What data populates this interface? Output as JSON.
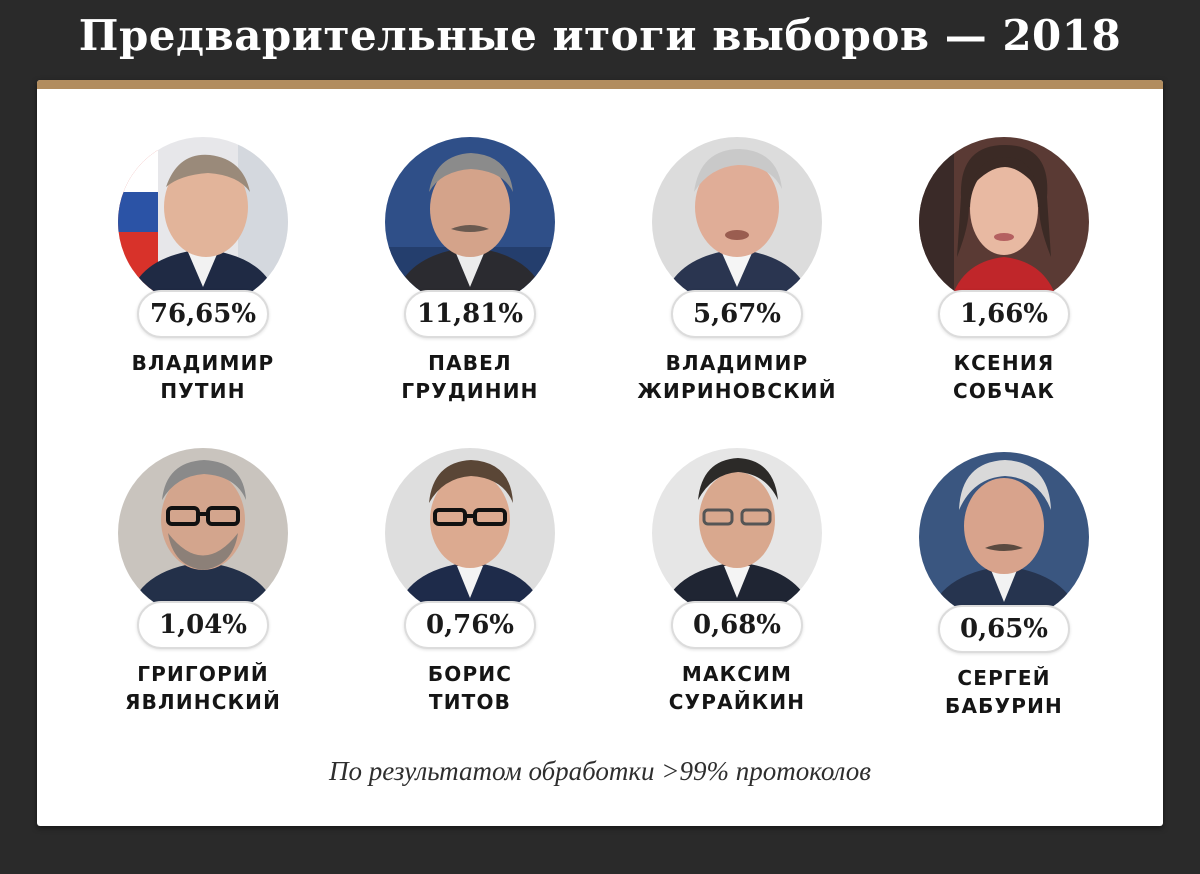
{
  "header": {
    "title": "Предварительные итоги выборов — 2018"
  },
  "colors": {
    "background": "#2a2a2a",
    "card": "#ffffff",
    "accent_bar": "#b28d5f"
  },
  "candidates": [
    {
      "first_name": "ВЛАДИМИР",
      "last_name": "ПУТИН",
      "percent": "76,65%",
      "share": 76.65,
      "portrait": "portrait-putin"
    },
    {
      "first_name": "ПАВЕЛ",
      "last_name": "ГРУДИНИН",
      "percent": "11,81%",
      "share": 11.81,
      "portrait": "portrait-grudinin"
    },
    {
      "first_name": "ВЛАДИМИР",
      "last_name": "ЖИРИНОВСКИЙ",
      "percent": "5,67%",
      "share": 5.67,
      "portrait": "portrait-zhirinovsky"
    },
    {
      "first_name": "КСЕНИЯ",
      "last_name": "СОБЧАК",
      "percent": "1,66%",
      "share": 1.66,
      "portrait": "portrait-sobchak"
    },
    {
      "first_name": "ГРИГОРИЙ",
      "last_name": "ЯВЛИНСКИЙ",
      "percent": "1,04%",
      "share": 1.04,
      "portrait": "portrait-yavlinsky"
    },
    {
      "first_name": "БОРИС",
      "last_name": "ТИТОВ",
      "percent": "0,76%",
      "share": 0.76,
      "portrait": "portrait-titov"
    },
    {
      "first_name": "МАКСИМ",
      "last_name": "СУРАЙКИН",
      "percent": "0,68%",
      "share": 0.68,
      "portrait": "portrait-suraykin"
    },
    {
      "first_name": "СЕРГЕЙ",
      "last_name": "БАБУРИН",
      "percent": "0,65%",
      "share": 0.65,
      "portrait": "portrait-baburin"
    }
  ],
  "footnote": "По результатом обработки >99% протоколов"
}
